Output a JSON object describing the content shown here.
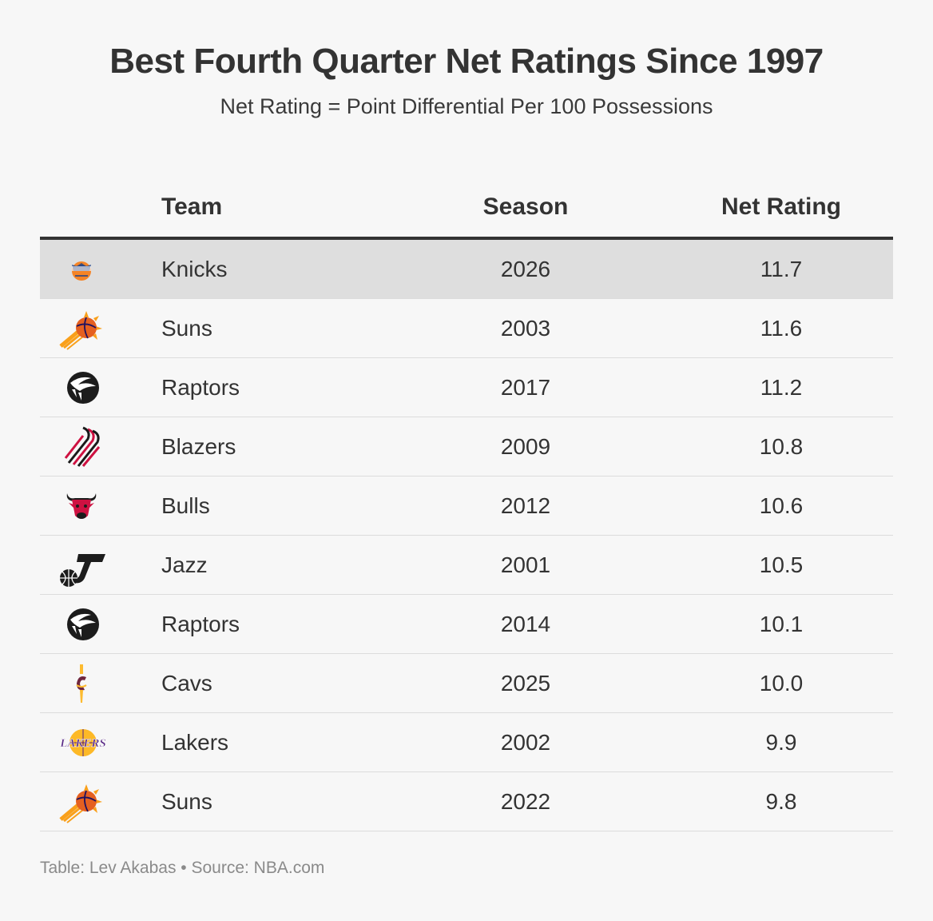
{
  "chart_data": {
    "type": "table",
    "title": "Best Fourth Quarter Net Ratings Since 1997",
    "subtitle": "Net Rating = Point Differential Per 100 Possessions",
    "columns": [
      "Team",
      "Season",
      "Net Rating"
    ],
    "rows": [
      {
        "team": "Knicks",
        "season": "2026",
        "rating": "11.7",
        "logo": "knicks-logo",
        "highlight": true
      },
      {
        "team": "Suns",
        "season": "2003",
        "rating": "11.6",
        "logo": "suns-logo",
        "highlight": false
      },
      {
        "team": "Raptors",
        "season": "2017",
        "rating": "11.2",
        "logo": "raptors-logo",
        "highlight": false
      },
      {
        "team": "Blazers",
        "season": "2009",
        "rating": "10.8",
        "logo": "blazers-logo",
        "highlight": false
      },
      {
        "team": "Bulls",
        "season": "2012",
        "rating": "10.6",
        "logo": "bulls-logo",
        "highlight": false
      },
      {
        "team": "Jazz",
        "season": "2001",
        "rating": "10.5",
        "logo": "jazz-logo",
        "highlight": false
      },
      {
        "team": "Raptors",
        "season": "2014",
        "rating": "10.1",
        "logo": "raptors-logo",
        "highlight": false
      },
      {
        "team": "Cavs",
        "season": "2025",
        "rating": "10.0",
        "logo": "cavs-logo",
        "highlight": false
      },
      {
        "team": "Lakers",
        "season": "2002",
        "rating": "9.9",
        "logo": "lakers-logo",
        "highlight": false
      },
      {
        "team": "Suns",
        "season": "2022",
        "rating": "9.8",
        "logo": "suns-logo",
        "highlight": false
      }
    ],
    "footer": "Table: Lev Akabas • Source: NBA.com"
  },
  "colors": {
    "highlight_row": "#dedede",
    "header_rule": "#333333",
    "row_rule": "#dcdcdc",
    "footer_text": "#8a8a8a"
  }
}
